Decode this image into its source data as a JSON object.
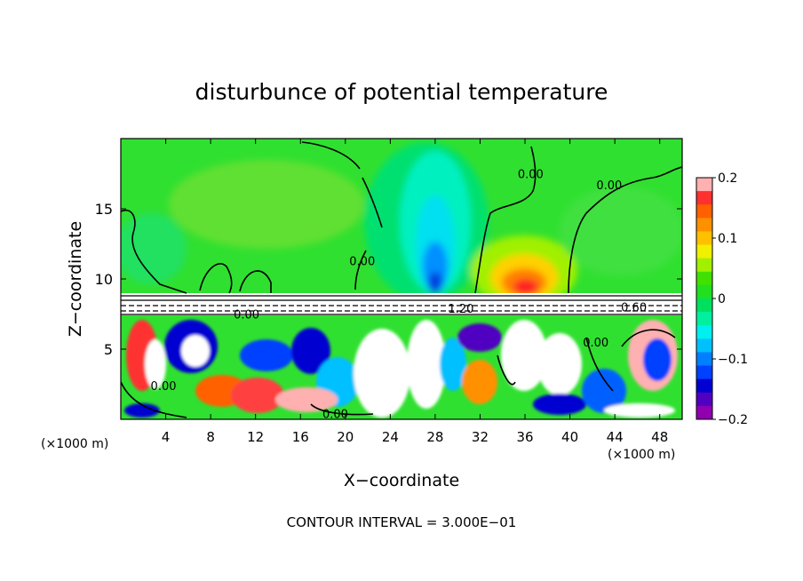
{
  "chart_data": {
    "type": "heatmap",
    "title": "disturbunce of potential temperature",
    "xlabel": "X−coordinate",
    "ylabel": "Z−coordinate",
    "x_unit_label": "(×1000 m)",
    "z_unit_label": "(×1000 m)",
    "footer": "CONTOUR INTERVAL = 3.000E−01",
    "xlim": [
      0,
      50
    ],
    "ylim": [
      0,
      20
    ],
    "x_ticks": [
      4,
      8,
      12,
      16,
      20,
      24,
      28,
      32,
      36,
      40,
      44,
      48
    ],
    "x_tick_labels": [
      "4",
      "8",
      "12",
      "16",
      "20",
      "24",
      "28",
      "32",
      "36",
      "40",
      "44",
      "48"
    ],
    "y_ticks": [
      5,
      10,
      15
    ],
    "y_tick_labels": [
      "5",
      "10",
      "15"
    ],
    "colorbar": {
      "min": -0.2,
      "max": 0.2,
      "ticks": [
        0.2,
        0.1,
        0,
        -0.1,
        -0.2
      ],
      "tick_labels": [
        "0.2",
        "0.1",
        "0",
        "−0.1",
        "−0.2"
      ],
      "colors": [
        "#ffb0b0",
        "#ff3030",
        "#ff6000",
        "#ff9000",
        "#ffc000",
        "#f0f000",
        "#a0f000",
        "#40e000",
        "#20e020",
        "#00e060",
        "#00f0a0",
        "#00f0f0",
        "#00c0ff",
        "#0080ff",
        "#0040ff",
        "#0000d0",
        "#5000c0",
        "#9000b0"
      ]
    },
    "contour_labels": [
      {
        "text": "0.00",
        "x": 43.5,
        "z": 16.7
      },
      {
        "text": "0.00",
        "x": 36.5,
        "z": 17.5
      },
      {
        "text": "0.00",
        "x": 21.5,
        "z": 11.3
      },
      {
        "text": "0.00",
        "x": 11.2,
        "z": 7.5
      },
      {
        "text": "1.20",
        "x": 30.3,
        "z": 7.9
      },
      {
        "text": "0.60",
        "x": 45.7,
        "z": 8.0
      },
      {
        "text": "0.00",
        "x": 42.3,
        "z": 5.5
      },
      {
        "text": "0.00",
        "x": 3.8,
        "z": 2.4
      },
      {
        "text": "0.00",
        "x": 19.1,
        "z": 0.4
      }
    ],
    "colormap": "rainbow",
    "field_regions": {
      "upper_troposphere_z_range": [
        9,
        20
      ],
      "inversion_layer_z_range": [
        7.5,
        9
      ],
      "lower_turbulent_z_range": [
        0,
        7.5
      ],
      "negative_anomaly_center": {
        "x": 28,
        "z": 10
      },
      "positive_anomaly_center": {
        "x": 36,
        "z": 10
      }
    }
  }
}
